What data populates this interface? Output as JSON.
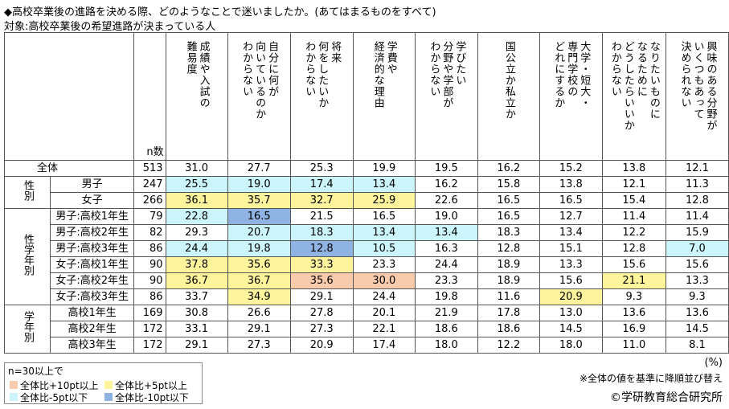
{
  "title": "◆高校卒業後の進路を決める際、どのようなことで迷いましたか。(あてはまるものをすべて)",
  "subtitle": "対象:高校卒業後の希望進路が決まっている人",
  "table": {
    "n_header": "n数",
    "columns": [
      [
        "成績や入試の",
        "難易度"
      ],
      [
        "自分に何が",
        "向いているのか",
        "わからない"
      ],
      [
        "将来",
        "何をしたいか",
        "わからない"
      ],
      [
        "学費や",
        "経済的な理由"
      ],
      [
        "学びたい",
        "分野や学部が",
        "わからない"
      ],
      [
        "国公立か私立か"
      ],
      [
        "大学・短大・",
        "専門学校の",
        "どれにするか"
      ],
      [
        "なりたいものに",
        "なるために",
        "どうしたらいいか",
        "わからない"
      ],
      [
        "興味のある分野が",
        "いくつもあって",
        "決められない"
      ]
    ],
    "sections": [
      {
        "rows": [
          {
            "label": "全体",
            "n": "513",
            "values": [
              "31.0",
              "27.7",
              "25.3",
              "19.9",
              "19.5",
              "16.2",
              "15.2",
              "13.8",
              "12.1"
            ]
          }
        ]
      },
      {
        "label": "性別",
        "rows": [
          {
            "label": "男子",
            "n": "247",
            "values": [
              "25.5",
              "19.0",
              "17.4",
              "13.4",
              "16.2",
              "15.8",
              "13.8",
              "12.1",
              "11.3"
            ],
            "highlight": [
              2,
              2,
              2,
              2,
              null,
              null,
              null,
              null,
              null
            ]
          },
          {
            "label": "女子",
            "n": "266",
            "values": [
              "36.1",
              "35.7",
              "32.7",
              "25.9",
              "22.6",
              "16.5",
              "16.5",
              "15.4",
              "12.8"
            ],
            "highlight": [
              1,
              1,
              1,
              1,
              null,
              null,
              null,
              null,
              null
            ]
          }
        ]
      },
      {
        "label": "性学年別",
        "rows": [
          {
            "label": "男子:高校1年生",
            "n": "79",
            "values": [
              "22.8",
              "16.5",
              "21.5",
              "16.5",
              "19.0",
              "16.5",
              "12.7",
              "11.4",
              "11.4"
            ],
            "highlight": [
              2,
              3,
              null,
              null,
              null,
              null,
              null,
              null,
              null
            ]
          },
          {
            "label": "男子:高校2年生",
            "n": "82",
            "values": [
              "29.3",
              "20.7",
              "18.3",
              "13.4",
              "13.4",
              "18.3",
              "13.4",
              "12.2",
              "15.9"
            ],
            "highlight": [
              null,
              2,
              2,
              2,
              2,
              null,
              null,
              null,
              null
            ]
          },
          {
            "label": "男子:高校3年生",
            "n": "86",
            "values": [
              "24.4",
              "19.8",
              "12.8",
              "10.5",
              "16.3",
              "12.8",
              "15.1",
              "12.8",
              "7.0"
            ],
            "highlight": [
              2,
              2,
              3,
              2,
              null,
              null,
              null,
              null,
              2
            ]
          },
          {
            "label": "女子:高校1年生",
            "n": "90",
            "values": [
              "37.8",
              "35.6",
              "33.3",
              "23.3",
              "24.4",
              "18.9",
              "13.3",
              "15.6",
              "15.6"
            ],
            "highlight": [
              1,
              1,
              1,
              null,
              null,
              null,
              null,
              null,
              null
            ]
          },
          {
            "label": "女子:高校2年生",
            "n": "90",
            "values": [
              "36.7",
              "36.7",
              "35.6",
              "30.0",
              "23.3",
              "18.9",
              "15.6",
              "21.1",
              "13.3"
            ],
            "highlight": [
              1,
              1,
              0,
              0,
              null,
              null,
              null,
              1,
              null
            ]
          },
          {
            "label": "女子:高校3年生",
            "n": "86",
            "values": [
              "33.7",
              "34.9",
              "29.1",
              "24.4",
              "19.8",
              "11.6",
              "20.9",
              "9.3",
              "9.3"
            ],
            "highlight": [
              null,
              1,
              null,
              null,
              null,
              null,
              1,
              null,
              null
            ]
          }
        ]
      },
      {
        "label": "学年別",
        "rows": [
          {
            "label": "高校1年生",
            "n": "169",
            "values": [
              "30.8",
              "26.6",
              "27.8",
              "20.1",
              "21.9",
              "17.8",
              "13.0",
              "13.6",
              "13.6"
            ]
          },
          {
            "label": "高校2年生",
            "n": "172",
            "values": [
              "33.1",
              "29.1",
              "27.3",
              "22.1",
              "18.6",
              "18.6",
              "14.5",
              "16.9",
              "14.5"
            ]
          },
          {
            "label": "高校3年生",
            "n": "172",
            "values": [
              "29.1",
              "27.3",
              "20.9",
              "17.4",
              "18.0",
              "12.2",
              "18.0",
              "11.0",
              "8.1"
            ]
          }
        ]
      }
    ]
  },
  "unit": "(%)",
  "legend": {
    "title": "n=30以上で",
    "items": [
      {
        "label": "全体比+10pt以上",
        "color": "#f8cbad"
      },
      {
        "label": "全体比+5pt以上",
        "color": "#fdf49c"
      },
      {
        "label": "全体比-5pt以下",
        "color": "#ccf5fb"
      },
      {
        "label": "全体比-10pt以下",
        "color": "#8fb4e3"
      }
    ]
  },
  "note": "※全体の値を基準に降順並び替え",
  "copyright": "©学研教育総合研究所"
}
